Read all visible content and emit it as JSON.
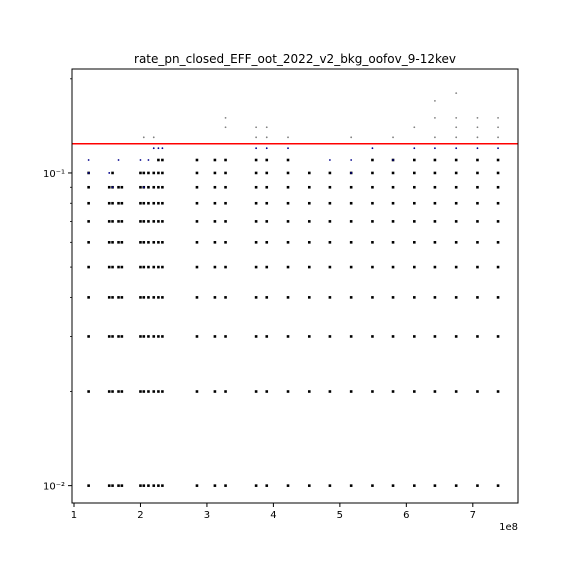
{
  "chart_data": {
    "type": "scatter",
    "title": "rate_pn_closed_EFF_oot_2022_v2_bkg_oofov_9-12kev",
    "xlabel": "",
    "ylabel": "",
    "x_offset_label": "1e8",
    "yscale": "log",
    "xlim": [
      0.97,
      7.68
    ],
    "ylim": [
      0.0088,
      0.215
    ],
    "grid": false,
    "x_ticks": [
      1,
      2,
      3,
      4,
      5,
      6,
      7
    ],
    "x_tick_labels": [
      "1",
      "2",
      "3",
      "4",
      "5",
      "6",
      "7"
    ],
    "y_major_ticks": [
      0.01,
      0.1
    ],
    "y_major_tick_labels": [
      "10⁻²",
      "10⁻¹"
    ],
    "y_minor_ticks": [
      0.02,
      0.03,
      0.04,
      0.05,
      0.06,
      0.07,
      0.08,
      0.09,
      0.2
    ],
    "threshold_line": {
      "y": 0.124,
      "color": "#ff0000"
    },
    "series": [
      {
        "color": "#000000",
        "x": [
          1.22,
          1.53,
          1.58,
          1.67,
          1.72,
          2.0,
          2.05,
          2.12,
          2.2,
          2.27,
          2.33,
          2.85,
          3.12,
          3.28,
          3.74,
          3.9,
          4.22,
          4.54,
          4.85,
          5.17,
          5.49,
          5.8,
          6.12,
          6.43,
          6.75,
          7.07,
          7.38
        ],
        "levels": [
          0.01,
          0.02,
          0.03,
          0.04,
          0.05,
          0.06,
          0.07,
          0.08,
          0.09,
          0.1,
          0.11
        ],
        "top": [
          0.1,
          0.09,
          0.1,
          0.09,
          0.09,
          0.1,
          0.1,
          0.1,
          0.1,
          0.11,
          0.11,
          0.11,
          0.11,
          0.11,
          0.11,
          0.11,
          0.11,
          0.1,
          0.1,
          0.1,
          0.11,
          0.11,
          0.11,
          0.11,
          0.11,
          0.11,
          0.11
        ]
      },
      {
        "color": "#00008b",
        "points": [
          [
            1.22,
            0.11
          ],
          [
            1.53,
            0.1
          ],
          [
            1.67,
            0.11
          ],
          [
            2.0,
            0.11
          ],
          [
            2.12,
            0.11
          ],
          [
            2.2,
            0.12
          ],
          [
            2.27,
            0.12
          ],
          [
            2.33,
            0.12
          ],
          [
            3.74,
            0.12
          ],
          [
            3.9,
            0.12
          ],
          [
            4.22,
            0.12
          ],
          [
            4.85,
            0.11
          ],
          [
            5.17,
            0.11
          ],
          [
            5.49,
            0.12
          ],
          [
            5.8,
            0.11
          ],
          [
            6.12,
            0.12
          ],
          [
            6.43,
            0.12
          ],
          [
            6.75,
            0.12
          ],
          [
            7.07,
            0.12
          ],
          [
            7.38,
            0.12
          ],
          [
            1.22,
            0.1
          ],
          [
            1.58,
            0.09
          ],
          [
            2.05,
            0.09
          ],
          [
            5.17,
            0.1
          ]
        ]
      },
      {
        "color": "#808080",
        "points": [
          [
            2.05,
            0.13
          ],
          [
            2.2,
            0.13
          ],
          [
            3.28,
            0.14
          ],
          [
            3.28,
            0.15
          ],
          [
            3.74,
            0.14
          ],
          [
            3.74,
            0.13
          ],
          [
            3.9,
            0.14
          ],
          [
            3.9,
            0.13
          ],
          [
            4.22,
            0.13
          ],
          [
            5.17,
            0.13
          ],
          [
            5.8,
            0.13
          ],
          [
            6.12,
            0.14
          ],
          [
            6.43,
            0.13
          ],
          [
            6.43,
            0.15
          ],
          [
            6.43,
            0.17
          ],
          [
            6.75,
            0.13
          ],
          [
            6.75,
            0.14
          ],
          [
            6.75,
            0.15
          ],
          [
            6.75,
            0.18
          ],
          [
            7.07,
            0.13
          ],
          [
            7.07,
            0.14
          ],
          [
            7.07,
            0.15
          ],
          [
            7.38,
            0.13
          ],
          [
            7.38,
            0.14
          ],
          [
            7.38,
            0.15
          ]
        ]
      }
    ]
  }
}
